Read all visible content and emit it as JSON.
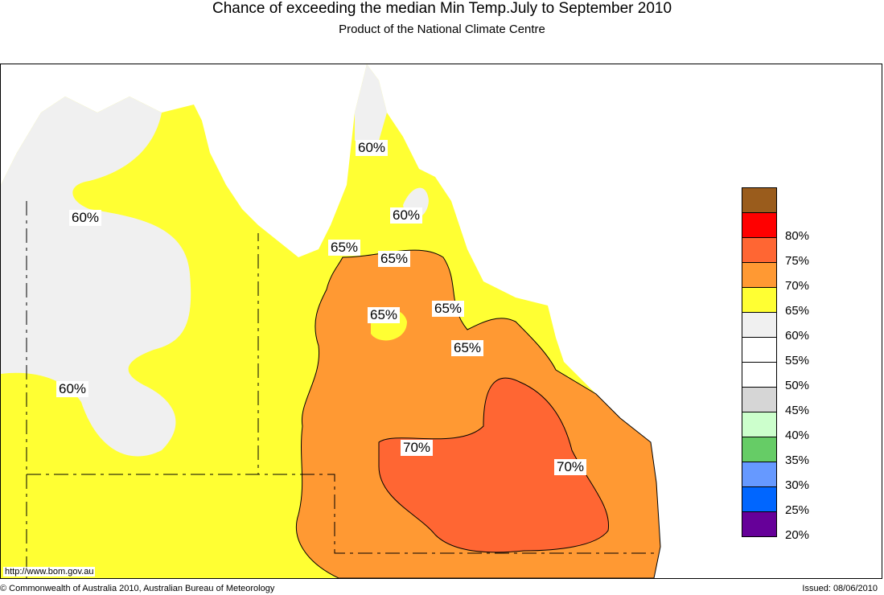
{
  "title": "Chance of exceeding the median Min Temp.July to September 2010",
  "subtitle": "Product of the National Climate Centre",
  "legend": {
    "items": [
      {
        "label": "",
        "color": "#9a5c1c"
      },
      {
        "label": "80%",
        "color": "#ff0000"
      },
      {
        "label": "75%",
        "color": "#ff6633"
      },
      {
        "label": "70%",
        "color": "#ff9933"
      },
      {
        "label": "65%",
        "color": "#ffff33"
      },
      {
        "label": "60%",
        "color": "#f0f0f0"
      },
      {
        "label": "55%",
        "color": "#ffffff"
      },
      {
        "label": "50%",
        "color": "#ffffff"
      },
      {
        "label": "45%",
        "color": "#d6d6d6"
      },
      {
        "label": "40%",
        "color": "#ccffcc"
      },
      {
        "label": "35%",
        "color": "#66cc66"
      },
      {
        "label": "30%",
        "color": "#6699ff"
      },
      {
        "label": "25%",
        "color": "#0066ff"
      },
      {
        "label": "20%",
        "color": "#660099"
      }
    ]
  },
  "map_labels": {
    "l1": "60%",
    "l2": "60%",
    "l3": "60%",
    "l4": "60%",
    "l5": "65%",
    "l6": "65%",
    "l7": "65%",
    "l8": "65%",
    "l9": "65%",
    "l10": "70%",
    "l11": "70%"
  },
  "footer": {
    "url": "http://www.bom.gov.au",
    "copyright": "© Commonwealth of Australia 2010, Australian Bureau of Meteorology",
    "issued": "Issued: 08/06/2010"
  }
}
